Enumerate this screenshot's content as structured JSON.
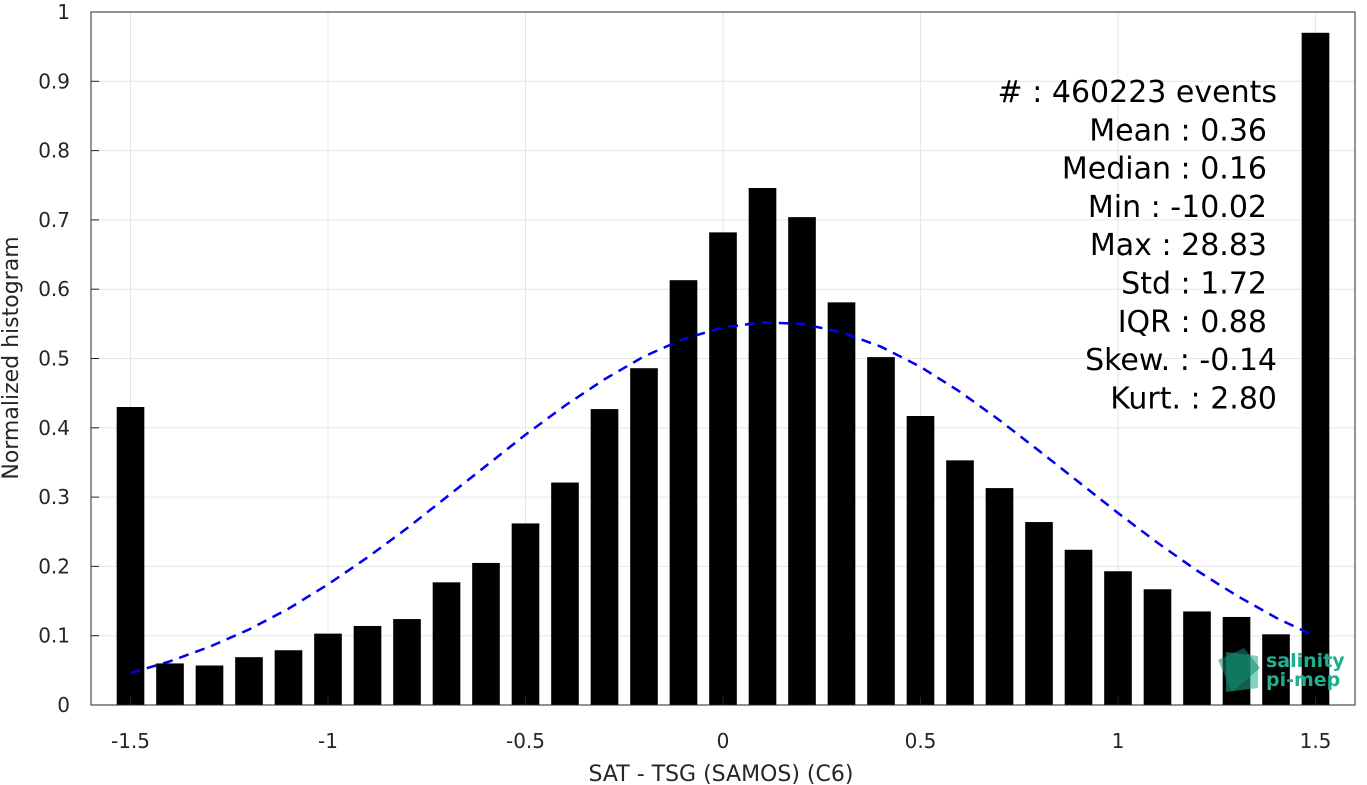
{
  "chart_data": {
    "type": "bar",
    "xlabel": "SAT - TSG (SAMOS) (C6)",
    "ylabel": "Normalized histogram",
    "xlim": [
      -1.6,
      1.6
    ],
    "ylim": [
      0,
      1
    ],
    "xticks": [
      "-1.5",
      "-1",
      "-0.5",
      "0",
      "0.5",
      "1",
      "1.5"
    ],
    "xtick_values": [
      -1.5,
      -1,
      -0.5,
      0,
      0.5,
      1,
      1.5
    ],
    "yticks": [
      "0",
      "0.1",
      "0.2",
      "0.3",
      "0.4",
      "0.5",
      "0.6",
      "0.7",
      "0.8",
      "0.9",
      "1"
    ],
    "ytick_values": [
      0,
      0.1,
      0.2,
      0.3,
      0.4,
      0.5,
      0.6,
      0.7,
      0.8,
      0.9,
      1
    ],
    "grid": true,
    "bar_color": "#000000",
    "series": [
      {
        "type": "bar",
        "x": [
          -1.5,
          -1.4,
          -1.3,
          -1.2,
          -1.1,
          -1.0,
          -0.9,
          -0.8,
          -0.7,
          -0.6,
          -0.5,
          -0.4,
          -0.3,
          -0.2,
          -0.1,
          0.0,
          0.1,
          0.2,
          0.3,
          0.4,
          0.5,
          0.6,
          0.7,
          0.8,
          0.9,
          1.0,
          1.1,
          1.2,
          1.3,
          1.4,
          1.5
        ],
        "values": [
          0.43,
          0.06,
          0.057,
          0.069,
          0.079,
          0.103,
          0.114,
          0.124,
          0.177,
          0.205,
          0.262,
          0.321,
          0.427,
          0.486,
          0.613,
          0.682,
          0.746,
          0.704,
          0.581,
          0.502,
          0.417,
          0.353,
          0.313,
          0.264,
          0.224,
          0.193,
          0.167,
          0.135,
          0.127,
          0.102,
          0.97
        ]
      },
      {
        "type": "line",
        "style": "dashed",
        "color": "#0000ee",
        "x": [
          -1.5,
          -1.4,
          -1.3,
          -1.2,
          -1.1,
          -1.0,
          -0.9,
          -0.8,
          -0.7,
          -0.6,
          -0.5,
          -0.4,
          -0.3,
          -0.2,
          -0.1,
          0.0,
          0.1,
          0.2,
          0.3,
          0.4,
          0.5,
          0.6,
          0.7,
          0.8,
          0.9,
          1.0,
          1.1,
          1.2,
          1.3,
          1.4,
          1.5
        ],
        "values": [
          0.046,
          0.063,
          0.084,
          0.109,
          0.139,
          0.174,
          0.213,
          0.255,
          0.3,
          0.345,
          0.39,
          0.432,
          0.47,
          0.503,
          0.528,
          0.545,
          0.552,
          0.55,
          0.538,
          0.517,
          0.488,
          0.452,
          0.411,
          0.367,
          0.322,
          0.277,
          0.234,
          0.194,
          0.158,
          0.126,
          0.099
        ]
      }
    ],
    "annotations": [
      "#  : 460223 events",
      "Mean : 0.36",
      "Median : 0.16",
      "Min : -10.02",
      "Max : 28.83",
      "Std : 1.72",
      "IQR : 0.88",
      "Skew. : -0.14",
      "Kurt. : 2.80"
    ],
    "logo": {
      "line1": "salinity",
      "line2": "pi-mep",
      "color": "#1fae8f"
    }
  }
}
